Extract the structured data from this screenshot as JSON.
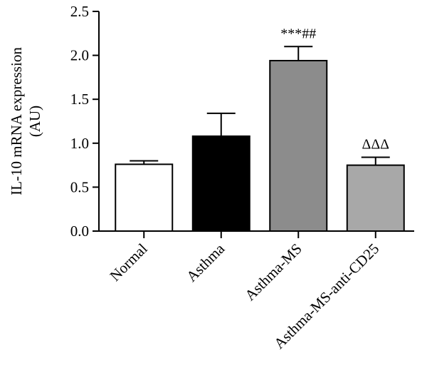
{
  "chart_data": {
    "type": "bar",
    "title": "",
    "xlabel": "",
    "ylabel_lines": [
      "IL-10 mRNA expression",
      "(AU)"
    ],
    "ylim": [
      0,
      2.5
    ],
    "yticks": [
      "0.0",
      "0.5",
      "1.0",
      "1.5",
      "2.0",
      "2.5"
    ],
    "ytick_values": [
      0,
      0.5,
      1.0,
      1.5,
      2.0,
      2.5
    ],
    "categories": [
      "Normal",
      "Asthma",
      "Asthma-MS",
      "Asthma-MS-anti-CD25"
    ],
    "values": [
      0.76,
      1.08,
      1.94,
      0.75
    ],
    "errors": [
      0.04,
      0.26,
      0.16,
      0.09
    ],
    "colors": [
      "#ffffff",
      "#000000",
      "#8c8c8c",
      "#a8a8a8"
    ],
    "annotations": [
      "",
      "",
      "***##",
      "ΔΔΔ"
    ],
    "grid": false
  }
}
